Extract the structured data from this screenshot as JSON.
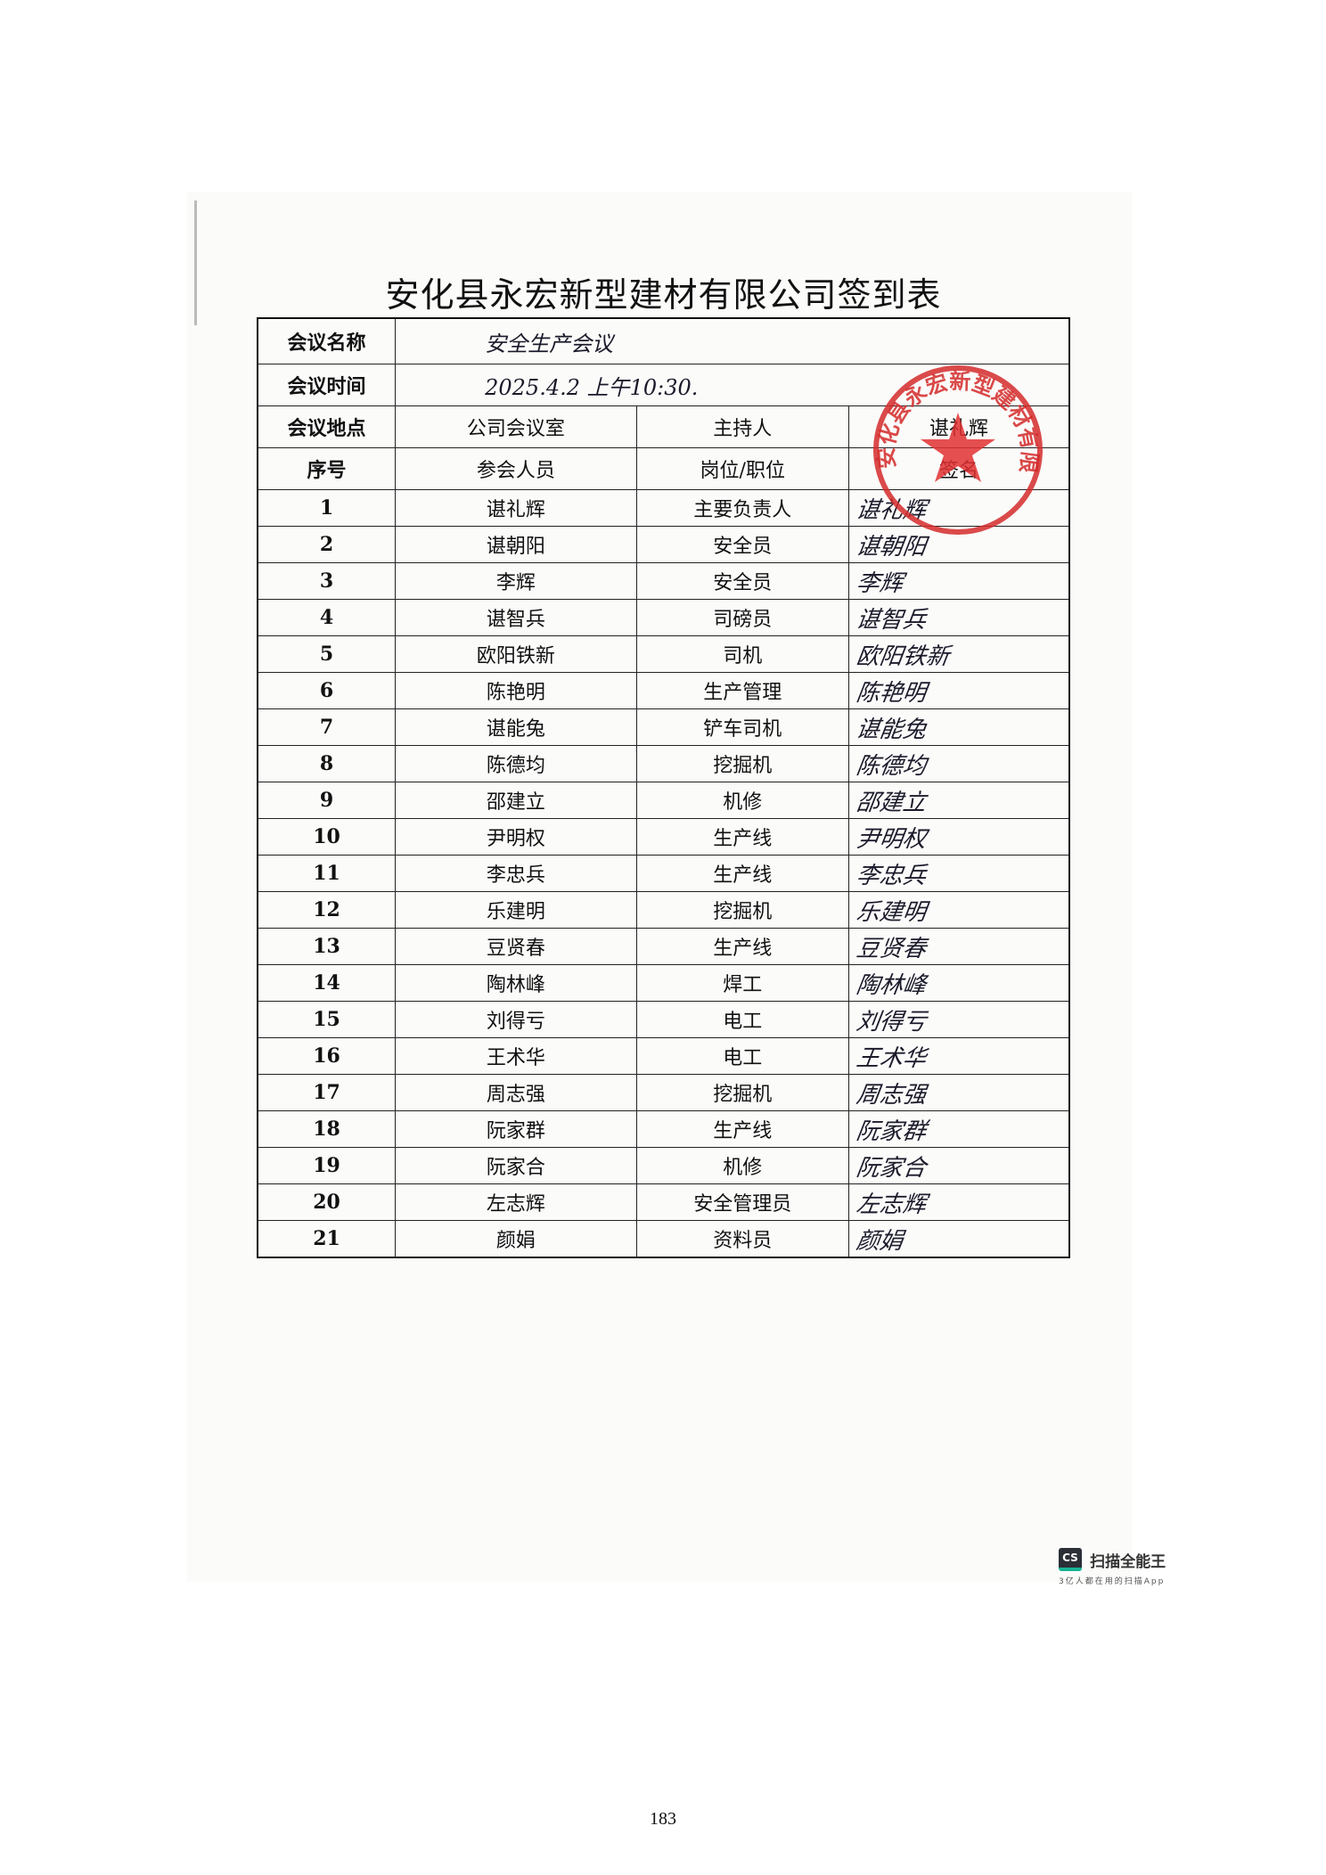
{
  "title": "安化县永宏新型建材有限公司签到表",
  "meeting": {
    "name_label": "会议名称",
    "name_value": "安全生产会议",
    "time_label": "会议时间",
    "time_value": "2025.4.2  上午10:30.",
    "place_label": "会议地点",
    "place_value": "公司会议室",
    "host_label": "主持人",
    "host_value": "谌礼辉"
  },
  "columns": [
    "序号",
    "参会人员",
    "岗位/职位",
    "签名"
  ],
  "rows": [
    {
      "no": "1",
      "name": "谌礼辉",
      "role": "主要负责人",
      "sign": "谌礼辉"
    },
    {
      "no": "2",
      "name": "谌朝阳",
      "role": "安全员",
      "sign": "谌朝阳"
    },
    {
      "no": "3",
      "name": "李辉",
      "role": "安全员",
      "sign": "李辉"
    },
    {
      "no": "4",
      "name": "谌智兵",
      "role": "司磅员",
      "sign": "谌智兵"
    },
    {
      "no": "5",
      "name": "欧阳铁新",
      "role": "司机",
      "sign": "欧阳铁新"
    },
    {
      "no": "6",
      "name": "陈艳明",
      "role": "生产管理",
      "sign": "陈艳明"
    },
    {
      "no": "7",
      "name": "谌能兔",
      "role": "铲车司机",
      "sign": "谌能兔"
    },
    {
      "no": "8",
      "name": "陈德均",
      "role": "挖掘机",
      "sign": "陈德均"
    },
    {
      "no": "9",
      "name": "邵建立",
      "role": "机修",
      "sign": "邵建立"
    },
    {
      "no": "10",
      "name": "尹明权",
      "role": "生产线",
      "sign": "尹明权"
    },
    {
      "no": "11",
      "name": "李忠兵",
      "role": "生产线",
      "sign": "李忠兵"
    },
    {
      "no": "12",
      "name": "乐建明",
      "role": "挖掘机",
      "sign": "乐建明"
    },
    {
      "no": "13",
      "name": "豆贤春",
      "role": "生产线",
      "sign": "豆贤春"
    },
    {
      "no": "14",
      "name": "陶林峰",
      "role": "焊工",
      "sign": "陶林峰"
    },
    {
      "no": "15",
      "name": "刘得亏",
      "role": "电工",
      "sign": "刘得亏"
    },
    {
      "no": "16",
      "name": "王术华",
      "role": "电工",
      "sign": "王术华"
    },
    {
      "no": "17",
      "name": "周志强",
      "role": "挖掘机",
      "sign": "周志强"
    },
    {
      "no": "18",
      "name": "阮家群",
      "role": "生产线",
      "sign": "阮家群"
    },
    {
      "no": "19",
      "name": "阮家合",
      "role": "机修",
      "sign": "阮家合"
    },
    {
      "no": "20",
      "name": "左志辉",
      "role": "安全管理员",
      "sign": "左志辉"
    },
    {
      "no": "21",
      "name": "颜娟",
      "role": "资料员",
      "sign": "颜娟"
    }
  ],
  "stamp": {
    "text": "安化县永宏新型建材有限公司",
    "color": "#d42a2a"
  },
  "watermark": {
    "name": "扫描全能王",
    "badge": "CS",
    "slogan": "3亿人都在用的扫描App"
  },
  "page_number": "183"
}
